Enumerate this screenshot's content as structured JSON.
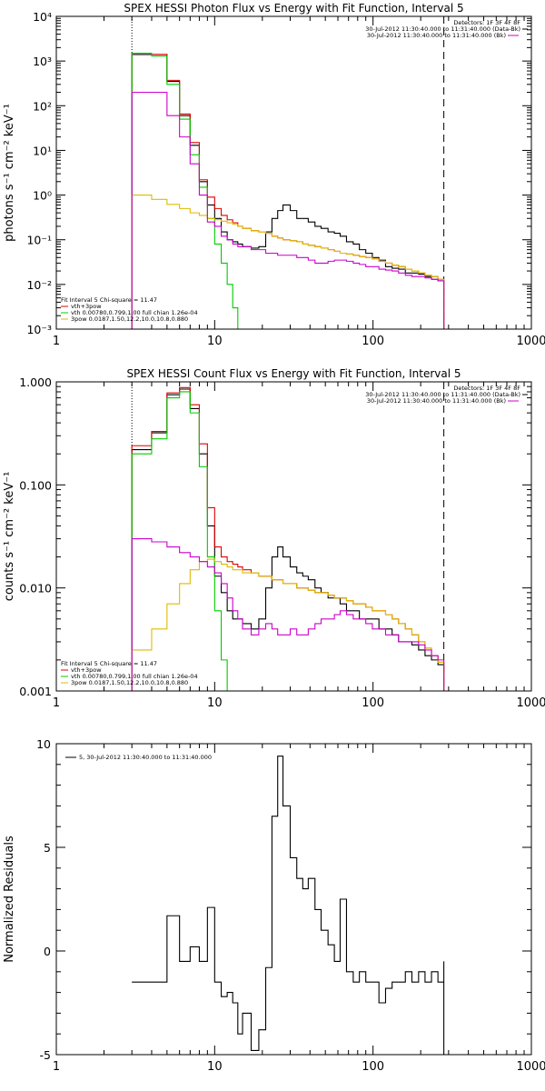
{
  "chart_data": [
    {
      "type": "line",
      "title": "SPEX HESSI Photon Flux vs Energy with Fit Function, Interval 5",
      "ylabel": "photons s⁻¹ cm⁻² keV⁻¹",
      "xscale": "log",
      "yscale": "log",
      "xlim": [
        1,
        1000
      ],
      "ylim": [
        0.001,
        10000
      ],
      "x_ticks": [
        "1",
        "10",
        "100",
        "1000"
      ],
      "y_ticks": [
        "10⁻³",
        "10⁻²",
        "10⁻¹",
        "10⁰",
        "10¹",
        "10²",
        "10³",
        "10⁴"
      ],
      "vlines": [
        {
          "x": 3,
          "style": "dotted"
        },
        {
          "x": 280,
          "style": "dashed"
        }
      ],
      "legend_top_right": [
        {
          "text": "Detectors: 1F 3F 4F 8F",
          "color": "#000000"
        },
        {
          "text": "30-Jul-2012 11:30:40.000 to 11:31:40.000 (Data-Bk)",
          "color": "#000000"
        },
        {
          "text": "30-Jul-2012 11:30:40.000 to 11:31:40.000 (Bk)",
          "color": "#cc00cc"
        }
      ],
      "legend_bottom_left": [
        {
          "text": "Fit Interval 5   Chi-square = 11.47",
          "color": "#000000"
        },
        {
          "text": "vth+3pow",
          "color": "#e00000"
        },
        {
          "text": "vth 0.00780,0.799,1.00   full chian 1.26e-04",
          "color": "#00cc00"
        },
        {
          "text": "3pow 0.0187,1.50,12.2,10.0,10.8,0.880",
          "color": "#ddbb00"
        }
      ],
      "series": [
        {
          "name": "Data-Bk",
          "color": "#000000",
          "x": [
            3,
            4,
            5,
            6,
            7,
            8,
            9,
            10,
            11,
            12,
            13,
            14,
            15,
            17,
            19,
            21,
            23,
            25,
            27,
            30,
            33,
            36,
            39,
            43,
            47,
            52,
            57,
            62,
            68,
            75,
            82,
            90,
            99,
            109,
            120,
            132,
            145,
            160,
            176,
            194,
            213,
            234,
            257,
            280
          ],
          "y": [
            1400,
            1400,
            350,
            60,
            13,
            2.0,
            0.6,
            0.3,
            0.15,
            0.1,
            0.09,
            0.08,
            0.07,
            0.065,
            0.07,
            0.15,
            0.3,
            0.45,
            0.6,
            0.45,
            0.3,
            0.3,
            0.25,
            0.2,
            0.18,
            0.15,
            0.14,
            0.12,
            0.09,
            0.08,
            0.06,
            0.05,
            0.04,
            0.035,
            0.025,
            0.023,
            0.022,
            0.018,
            0.018,
            0.017,
            0.015,
            0.013,
            0.012,
            0.012
          ]
        },
        {
          "name": "vth+3pow",
          "color": "#e00000",
          "x": [
            3,
            4,
            5,
            6,
            7,
            8,
            9,
            10,
            11,
            12,
            13,
            14,
            15,
            17,
            19,
            21,
            23,
            25,
            27,
            30,
            33,
            36,
            39,
            43,
            47,
            52,
            57,
            62,
            68,
            75,
            82,
            90,
            99,
            109,
            120,
            132,
            145,
            160,
            176,
            194,
            213,
            234,
            257,
            280
          ],
          "y": [
            1500,
            1400,
            370,
            65,
            15,
            2.2,
            0.9,
            0.5,
            0.35,
            0.28,
            0.24,
            0.2,
            0.18,
            0.16,
            0.15,
            0.14,
            0.12,
            0.11,
            0.1,
            0.095,
            0.09,
            0.08,
            0.075,
            0.07,
            0.065,
            0.06,
            0.055,
            0.05,
            0.048,
            0.045,
            0.042,
            0.04,
            0.037,
            0.033,
            0.03,
            0.027,
            0.025,
            0.022,
            0.02,
            0.018,
            0.016,
            0.015,
            0.013,
            0.012
          ]
        },
        {
          "name": "vth",
          "color": "#00cc00",
          "x": [
            3,
            4,
            5,
            6,
            7,
            8,
            9,
            10,
            11,
            12,
            13,
            14
          ],
          "y": [
            1500,
            1300,
            300,
            50,
            8,
            1.5,
            0.3,
            0.08,
            0.03,
            0.01,
            0.003,
            0.001
          ]
        },
        {
          "name": "3pow",
          "color": "#ddbb00",
          "x": [
            3,
            4,
            5,
            6,
            7,
            8,
            9,
            10,
            11,
            12,
            13,
            14,
            15,
            17,
            19,
            21,
            23,
            25,
            27,
            30,
            33,
            36,
            39,
            43,
            47,
            52,
            57,
            62,
            68,
            75,
            82,
            90,
            99,
            109,
            120,
            132,
            145,
            160,
            176,
            194,
            213,
            234,
            257,
            280
          ],
          "y": [
            1.0,
            0.8,
            0.62,
            0.5,
            0.4,
            0.35,
            0.3,
            0.28,
            0.26,
            0.24,
            0.22,
            0.2,
            0.18,
            0.16,
            0.15,
            0.14,
            0.12,
            0.11,
            0.1,
            0.095,
            0.09,
            0.08,
            0.075,
            0.07,
            0.065,
            0.06,
            0.055,
            0.05,
            0.048,
            0.045,
            0.042,
            0.04,
            0.037,
            0.033,
            0.03,
            0.027,
            0.025,
            0.022,
            0.02,
            0.018,
            0.016,
            0.015,
            0.013,
            0.012
          ]
        },
        {
          "name": "Bk",
          "color": "#cc00cc",
          "x": [
            3,
            4,
            5,
            6,
            7,
            8,
            9,
            10,
            11,
            12,
            13,
            14,
            15,
            17,
            19,
            21,
            23,
            25,
            27,
            30,
            33,
            36,
            39,
            43,
            47,
            52,
            57,
            62,
            68,
            75,
            82,
            90,
            99,
            109,
            120,
            132,
            145,
            160,
            176,
            194,
            213,
            234,
            257,
            280
          ],
          "y": [
            200,
            200,
            60,
            20,
            5,
            1.0,
            0.25,
            0.2,
            0.12,
            0.1,
            0.08,
            0.07,
            0.07,
            0.06,
            0.06,
            0.05,
            0.05,
            0.045,
            0.045,
            0.045,
            0.04,
            0.04,
            0.035,
            0.03,
            0.03,
            0.033,
            0.035,
            0.035,
            0.033,
            0.03,
            0.028,
            0.025,
            0.025,
            0.022,
            0.021,
            0.02,
            0.018,
            0.016,
            0.015,
            0.015,
            0.014,
            0.013,
            0.012,
            0.011
          ]
        }
      ]
    },
    {
      "type": "line",
      "title": "SPEX HESSI Count Flux vs Energy with Fit Function, Interval 5",
      "ylabel": "counts s⁻¹ cm⁻² keV⁻¹",
      "xscale": "log",
      "yscale": "log",
      "xlim": [
        1,
        1000
      ],
      "ylim": [
        0.001,
        1.0
      ],
      "x_ticks": [
        "1",
        "10",
        "100",
        "1000"
      ],
      "y_ticks": [
        "0.001",
        "0.010",
        "0.100",
        "1.000"
      ],
      "vlines": [
        {
          "x": 3,
          "style": "dotted"
        },
        {
          "x": 280,
          "style": "dashed"
        }
      ],
      "legend_top_right": [
        {
          "text": "Detectors: 1F 3F 4F 8F",
          "color": "#000000"
        },
        {
          "text": "30-Jul-2012 11:30:40.000 to 11:31:40.000 (Data-Bk)",
          "color": "#000000"
        },
        {
          "text": "30-Jul-2012 11:30:40.000 to 11:31:40.000 (Bk)",
          "color": "#cc00cc"
        }
      ],
      "legend_bottom_left": [
        {
          "text": "Fit Interval 5   Chi-square = 11.47",
          "color": "#000000"
        },
        {
          "text": "vth+3pow",
          "color": "#e00000"
        },
        {
          "text": "vth 0.00780,0.799,1.00   full chian 1.26e-04",
          "color": "#00cc00"
        },
        {
          "text": "3pow 0.0187,1.50,12.2,10.0,10.8,0.880",
          "color": "#ddbb00"
        }
      ],
      "series": [
        {
          "name": "Data-Bk",
          "color": "#000000",
          "x": [
            3,
            4,
            5,
            6,
            7,
            8,
            9,
            10,
            11,
            12,
            13,
            14,
            15,
            17,
            19,
            21,
            23,
            25,
            27,
            30,
            33,
            36,
            39,
            43,
            47,
            52,
            57,
            62,
            68,
            75,
            82,
            90,
            99,
            109,
            120,
            132,
            145,
            160,
            176,
            194,
            213,
            234,
            257,
            280
          ],
          "y": [
            0.22,
            0.32,
            0.75,
            0.85,
            0.55,
            0.2,
            0.04,
            0.013,
            0.009,
            0.006,
            0.005,
            0.005,
            0.0045,
            0.004,
            0.005,
            0.01,
            0.02,
            0.025,
            0.02,
            0.016,
            0.014,
            0.013,
            0.012,
            0.01,
            0.009,
            0.008,
            0.008,
            0.007,
            0.006,
            0.006,
            0.005,
            0.005,
            0.005,
            0.004,
            0.004,
            0.0035,
            0.003,
            0.003,
            0.0028,
            0.0025,
            0.0022,
            0.002,
            0.0018,
            0.0016
          ]
        },
        {
          "name": "vth+3pow",
          "color": "#e00000",
          "x": [
            3,
            4,
            5,
            6,
            7,
            8,
            9,
            10,
            11,
            12,
            13,
            14,
            15,
            17,
            19,
            21,
            23,
            25,
            27,
            30,
            33,
            36,
            39,
            43,
            47,
            52,
            57,
            62,
            68,
            75,
            82,
            90,
            99,
            109,
            120,
            132,
            145,
            160,
            176,
            194,
            213,
            234,
            257,
            280
          ],
          "y": [
            0.24,
            0.33,
            0.78,
            0.88,
            0.6,
            0.25,
            0.06,
            0.025,
            0.02,
            0.018,
            0.017,
            0.016,
            0.015,
            0.014,
            0.013,
            0.013,
            0.012,
            0.012,
            0.011,
            0.011,
            0.01,
            0.01,
            0.0095,
            0.009,
            0.009,
            0.0085,
            0.008,
            0.008,
            0.0075,
            0.007,
            0.007,
            0.0065,
            0.006,
            0.006,
            0.0055,
            0.005,
            0.0045,
            0.004,
            0.0035,
            0.003,
            0.0026,
            0.0022,
            0.0019,
            0.0016
          ]
        },
        {
          "name": "vth",
          "color": "#00cc00",
          "x": [
            3,
            4,
            5,
            6,
            7,
            8,
            9,
            10,
            11,
            12
          ],
          "y": [
            0.2,
            0.28,
            0.7,
            0.8,
            0.5,
            0.15,
            0.02,
            0.006,
            0.002,
            0.001
          ]
        },
        {
          "name": "3pow",
          "color": "#ddbb00",
          "x": [
            3,
            4,
            5,
            6,
            7,
            8,
            9,
            10,
            11,
            12,
            13,
            14,
            15,
            17,
            19,
            21,
            23,
            25,
            27,
            30,
            33,
            36,
            39,
            43,
            47,
            52,
            57,
            62,
            68,
            75,
            82,
            90,
            99,
            109,
            120,
            132,
            145,
            160,
            176,
            194,
            213,
            234,
            257,
            280
          ],
          "y": [
            0.0025,
            0.004,
            0.007,
            0.011,
            0.015,
            0.018,
            0.019,
            0.018,
            0.017,
            0.016,
            0.015,
            0.015,
            0.014,
            0.014,
            0.013,
            0.013,
            0.012,
            0.012,
            0.011,
            0.011,
            0.01,
            0.01,
            0.0095,
            0.009,
            0.009,
            0.0085,
            0.008,
            0.008,
            0.0075,
            0.007,
            0.007,
            0.0065,
            0.006,
            0.006,
            0.0055,
            0.005,
            0.0045,
            0.004,
            0.0035,
            0.003,
            0.0026,
            0.0022,
            0.0019,
            0.0016
          ]
        },
        {
          "name": "Bk",
          "color": "#cc00cc",
          "x": [
            3,
            4,
            5,
            6,
            7,
            8,
            9,
            10,
            11,
            12,
            13,
            14,
            15,
            17,
            19,
            21,
            23,
            25,
            27,
            30,
            33,
            36,
            39,
            43,
            47,
            52,
            57,
            62,
            68,
            75,
            82,
            90,
            99,
            109,
            120,
            132,
            145,
            160,
            176,
            194,
            213,
            234,
            257,
            280
          ],
          "y": [
            0.03,
            0.028,
            0.025,
            0.022,
            0.02,
            0.018,
            0.016,
            0.014,
            0.011,
            0.008,
            0.006,
            0.005,
            0.004,
            0.0035,
            0.004,
            0.0045,
            0.004,
            0.0035,
            0.0035,
            0.004,
            0.0035,
            0.0035,
            0.004,
            0.0045,
            0.005,
            0.005,
            0.0055,
            0.006,
            0.0055,
            0.005,
            0.005,
            0.0045,
            0.004,
            0.004,
            0.0035,
            0.0035,
            0.003,
            0.003,
            0.003,
            0.0028,
            0.0025,
            0.0022,
            0.002,
            0.0018
          ]
        }
      ]
    },
    {
      "type": "line",
      "title": "",
      "ylabel": "Normalized Residuals",
      "xscale": "log",
      "xlim": [
        1,
        1000
      ],
      "ylim": [
        -5,
        10
      ],
      "x_ticks": [
        "1",
        "10",
        "100",
        "1000"
      ],
      "y_ticks": [
        "-5",
        "0",
        "5",
        "10"
      ],
      "legend": [
        "5, 30-Jul-2012 11:30:40.000 to 11:31:40.000"
      ],
      "series": [
        {
          "name": "5, 30-Jul-2012 11:30:40.000 to 11:31:40.000",
          "color": "#000000",
          "x": [
            3,
            4,
            5,
            6,
            7,
            8,
            9,
            10,
            11,
            12,
            13,
            14,
            15,
            17,
            19,
            21,
            23,
            25,
            27,
            30,
            33,
            36,
            39,
            43,
            47,
            52,
            57,
            62,
            68,
            75,
            82,
            90,
            99,
            109,
            120,
            132,
            145,
            160,
            176,
            194,
            213,
            234,
            257,
            280
          ],
          "y": [
            -1.5,
            -1.5,
            1.7,
            -0.5,
            0.2,
            -0.5,
            2.1,
            -1.5,
            -2.2,
            -2.0,
            -2.5,
            -4.0,
            -3.0,
            -4.8,
            -3.8,
            -0.8,
            6.5,
            9.4,
            7.0,
            4.5,
            3.5,
            3.0,
            3.5,
            2.0,
            1.0,
            0.3,
            -0.5,
            2.5,
            -1.0,
            -1.5,
            -1.0,
            -1.5,
            -1.5,
            -2.5,
            -1.8,
            -1.5,
            -1.5,
            -1.0,
            -1.5,
            -1.0,
            -1.5,
            -1.0,
            -1.5,
            -0.5
          ]
        }
      ]
    }
  ]
}
